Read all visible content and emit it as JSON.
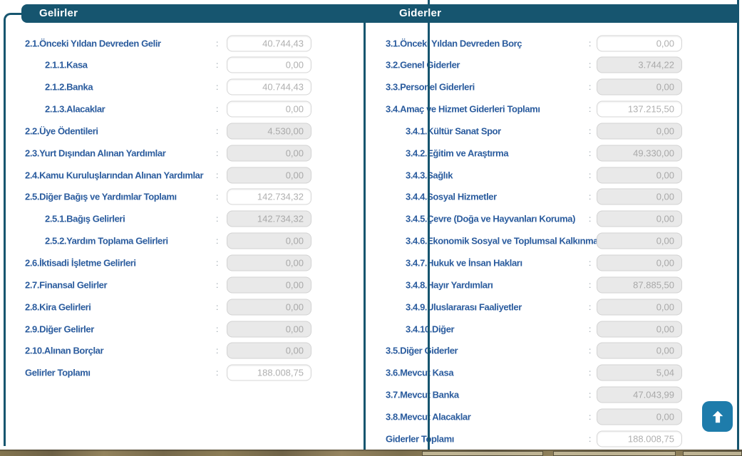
{
  "separator": ":",
  "colors": {
    "header_teal": "#16556F",
    "label_blue": "#2B5C9E",
    "button_blue": "#1E7CAB",
    "disabled_field_bg": "#E9E9E9",
    "value_gray": "#B0B0B0"
  },
  "panels": {
    "gelirler": {
      "title": "Gelirler",
      "rows": [
        {
          "label": "2.1.Önceki Yıldan Devreden Gelir",
          "value": "40.744,43",
          "level": 0,
          "enabled": true
        },
        {
          "label": "2.1.1.Kasa",
          "value": "0,00",
          "level": 1,
          "enabled": true
        },
        {
          "label": "2.1.2.Banka",
          "value": "40.744,43",
          "level": 1,
          "enabled": true
        },
        {
          "label": "2.1.3.Alacaklar",
          "value": "0,00",
          "level": 1,
          "enabled": true
        },
        {
          "label": "2.2.Üye Ödentileri",
          "value": "4.530,00",
          "level": 0,
          "enabled": false
        },
        {
          "label": "2.3.Yurt Dışından Alınan Yardımlar",
          "value": "0,00",
          "level": 0,
          "enabled": false
        },
        {
          "label": "2.4.Kamu Kuruluşlarından Alınan Yardımlar",
          "value": "0,00",
          "level": 0,
          "enabled": false
        },
        {
          "label": "2.5.Diğer Bağış ve Yardımlar Toplamı",
          "value": "142.734,32",
          "level": 0,
          "enabled": true
        },
        {
          "label": "2.5.1.Bağış Gelirleri",
          "value": "142.734,32",
          "level": 1,
          "enabled": false
        },
        {
          "label": "2.5.2.Yardım Toplama Gelirleri",
          "value": "0,00",
          "level": 1,
          "enabled": false
        },
        {
          "label": "2.6.İktisadi İşletme Gelirleri",
          "value": "0,00",
          "level": 0,
          "enabled": false
        },
        {
          "label": "2.7.Finansal Gelirler",
          "value": "0,00",
          "level": 0,
          "enabled": false
        },
        {
          "label": "2.8.Kira Gelirleri",
          "value": "0,00",
          "level": 0,
          "enabled": false
        },
        {
          "label": "2.9.Diğer Gelirler",
          "value": "0,00",
          "level": 0,
          "enabled": false
        },
        {
          "label": "2.10.Alınan Borçlar",
          "value": "0,00",
          "level": 0,
          "enabled": false
        },
        {
          "label": "Gelirler Toplamı",
          "value": "188.008,75",
          "level": 0,
          "enabled": true
        }
      ]
    },
    "giderler": {
      "title": "Giderler",
      "rows": [
        {
          "label": "3.1.Önceki Yıldan Devreden Borç",
          "value": "0,00",
          "level": 0,
          "enabled": true
        },
        {
          "label": "3.2.Genel Giderler",
          "value": "3.744,22",
          "level": 0,
          "enabled": false
        },
        {
          "label": "3.3.Personel Giderleri",
          "value": "0,00",
          "level": 0,
          "enabled": false
        },
        {
          "label": "3.4.Amaç ve Hizmet Giderleri Toplamı",
          "value": "137.215,50",
          "level": 0,
          "enabled": true
        },
        {
          "label": "3.4.1.Kültür Sanat Spor",
          "value": "0,00",
          "level": 1,
          "enabled": false
        },
        {
          "label": "3.4.2.Eğitim ve Araştırma",
          "value": "49.330,00",
          "level": 1,
          "enabled": false
        },
        {
          "label": "3.4.3.Sağlık",
          "value": "0,00",
          "level": 1,
          "enabled": false
        },
        {
          "label": "3.4.4.Sosyal Hizmetler",
          "value": "0,00",
          "level": 1,
          "enabled": false
        },
        {
          "label": "3.4.5.Çevre (Doğa ve Hayvanları Koruma)",
          "value": "0,00",
          "level": 1,
          "enabled": false
        },
        {
          "label": "3.4.6.Ekonomik Sosyal ve Toplumsal Kalkınma",
          "value": "0,00",
          "level": 1,
          "enabled": false
        },
        {
          "label": "3.4.7.Hukuk ve İnsan Hakları",
          "value": "0,00",
          "level": 1,
          "enabled": false
        },
        {
          "label": "3.4.8.Hayır Yardımları",
          "value": "87.885,50",
          "level": 1,
          "enabled": false
        },
        {
          "label": "3.4.9.Uluslararası Faaliyetler",
          "value": "0,00",
          "level": 1,
          "enabled": false
        },
        {
          "label": "3.4.10.Diğer",
          "value": "0,00",
          "level": 1,
          "enabled": false
        },
        {
          "label": "3.5.Diğer Giderler",
          "value": "0,00",
          "level": 0,
          "enabled": false
        },
        {
          "label": "3.6.Mevcut Kasa",
          "value": "5,04",
          "level": 0,
          "enabled": false
        },
        {
          "label": "3.7.Mevcut Banka",
          "value": "47.043,99",
          "level": 0,
          "enabled": false
        },
        {
          "label": "3.8.Mevcut Alacaklar",
          "value": "0,00",
          "level": 0,
          "enabled": false
        },
        {
          "label": "Giderler Toplamı",
          "value": "188.008,75",
          "level": 0,
          "enabled": true
        }
      ]
    }
  }
}
